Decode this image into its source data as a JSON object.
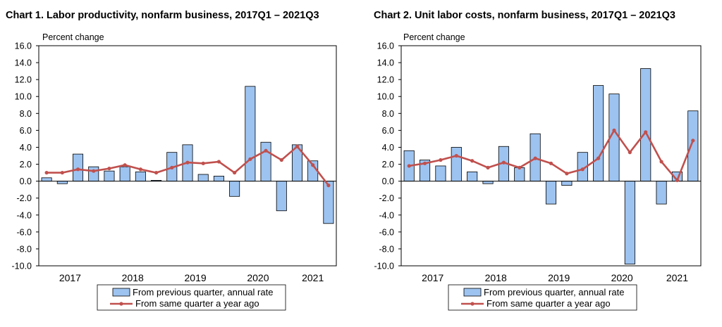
{
  "chart_data": [
    {
      "type": "bar",
      "title": "Chart  1. Labor productivity, nonfarm business, 2017Q1 – 2021Q3",
      "ylabel": "Percent change",
      "xlabel": "",
      "ylim": [
        -10,
        16
      ],
      "yticks": [
        "16.0",
        "14.0",
        "12.0",
        "10.0",
        "8.0",
        "6.0",
        "4.0",
        "2.0",
        "0.0",
        "-2.0",
        "-4.0",
        "-6.0",
        "-8.0",
        "-10.0"
      ],
      "year_labels": [
        "2017",
        "2018",
        "2019",
        "2020",
        "2021"
      ],
      "categories": [
        "2017Q1",
        "2017Q2",
        "2017Q3",
        "2017Q4",
        "2018Q1",
        "2018Q2",
        "2018Q3",
        "2018Q4",
        "2019Q1",
        "2019Q2",
        "2019Q3",
        "2019Q4",
        "2020Q1",
        "2020Q2",
        "2020Q3",
        "2020Q4",
        "2021Q1",
        "2021Q2",
        "2021Q3"
      ],
      "series": [
        {
          "name": "From previous quarter, annual rate",
          "kind": "bar",
          "color": "#9DC3F0",
          "values": [
            0.4,
            -0.3,
            3.2,
            1.7,
            1.2,
            1.7,
            1.1,
            0.1,
            3.4,
            4.3,
            0.8,
            0.6,
            -1.8,
            11.2,
            4.6,
            -3.5,
            4.3,
            2.4,
            -5.0
          ]
        },
        {
          "name": "From same quarter a year ago",
          "kind": "line",
          "color": "#C0504D",
          "values": [
            1.0,
            1.0,
            1.4,
            1.2,
            1.5,
            1.9,
            1.4,
            1.0,
            1.6,
            2.2,
            2.1,
            2.3,
            1.0,
            2.6,
            3.6,
            2.5,
            4.1,
            1.9,
            -0.5
          ]
        }
      ],
      "grid": false,
      "legend_position": "bottom-center"
    },
    {
      "type": "bar",
      "title": "Chart  2. Unit labor costs, nonfarm business, 2017Q1 – 2021Q3",
      "ylabel": "Percent change",
      "xlabel": "",
      "ylim": [
        -10,
        16
      ],
      "yticks": [
        "16.0",
        "14.0",
        "12.0",
        "10.0",
        "8.0",
        "6.0",
        "4.0",
        "2.0",
        "0.0",
        "-2.0",
        "-4.0",
        "-6.0",
        "-8.0",
        "-10.0"
      ],
      "year_labels": [
        "2017",
        "2018",
        "2019",
        "2020",
        "2021"
      ],
      "categories": [
        "2017Q1",
        "2017Q2",
        "2017Q3",
        "2017Q4",
        "2018Q1",
        "2018Q2",
        "2018Q3",
        "2018Q4",
        "2019Q1",
        "2019Q2",
        "2019Q3",
        "2019Q4",
        "2020Q1",
        "2020Q2",
        "2020Q3",
        "2020Q4",
        "2021Q1",
        "2021Q2",
        "2021Q3"
      ],
      "series": [
        {
          "name": "From previous quarter, annual rate",
          "kind": "bar",
          "color": "#9DC3F0",
          "values": [
            3.6,
            2.5,
            1.8,
            4.0,
            1.1,
            -0.3,
            4.1,
            1.6,
            5.6,
            -2.7,
            -0.5,
            3.4,
            11.3,
            10.3,
            -9.8,
            13.3,
            -2.7,
            1.1,
            8.3
          ]
        },
        {
          "name": "From same quarter a year ago",
          "kind": "line",
          "color": "#C0504D",
          "values": [
            1.8,
            2.1,
            2.5,
            3.0,
            2.4,
            1.6,
            2.2,
            1.6,
            2.7,
            2.1,
            0.9,
            1.4,
            2.7,
            6.0,
            3.4,
            5.8,
            2.3,
            0.1,
            4.8
          ]
        }
      ],
      "grid": false,
      "legend_position": "bottom-center"
    }
  ]
}
